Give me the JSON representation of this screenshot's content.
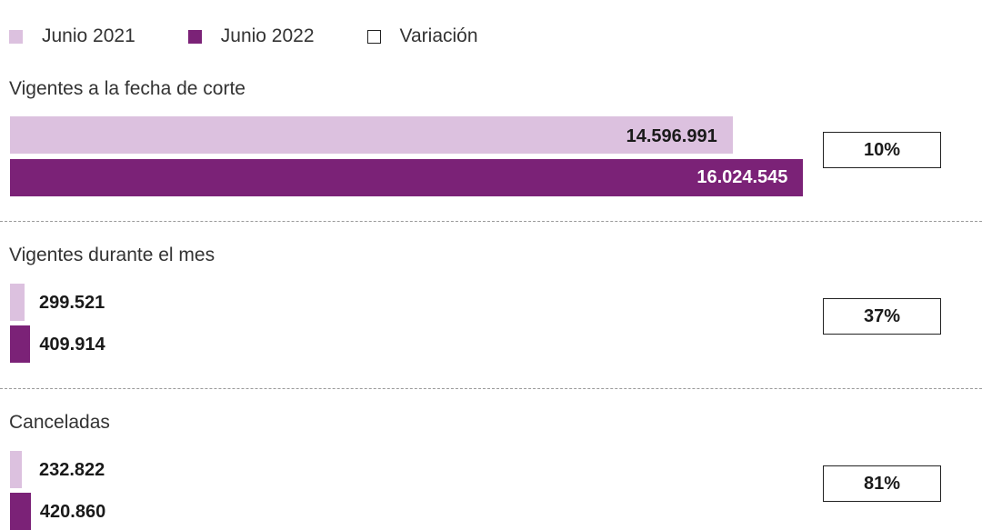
{
  "colors": {
    "junio_2021": "#dcc1df",
    "junio_2022": "#7b2277"
  },
  "legend": {
    "items": [
      {
        "label": "Junio 2021",
        "swatch": "filled-light"
      },
      {
        "label": "Junio 2022",
        "swatch": "filled-dark"
      },
      {
        "label": "Variación",
        "swatch": "outline"
      }
    ]
  },
  "chart_data": {
    "type": "bar",
    "orientation": "horizontal",
    "categories": [
      "Vigentes  a la fecha de corte",
      "Vigentes durante el mes",
      "Canceladas"
    ],
    "series": [
      {
        "name": "Junio 2021",
        "values": [
          14596991,
          299521,
          232822
        ]
      },
      {
        "name": "Junio 2022",
        "values": [
          16024545,
          409914,
          420860
        ]
      }
    ],
    "value_labels": {
      "Junio 2021": [
        "14.596.991",
        "299.521",
        "232.822"
      ],
      "Junio 2022": [
        "16.024.545",
        "409.914",
        "420.860"
      ]
    },
    "variation": [
      "10%",
      "37%",
      "81%"
    ],
    "xlim": [
      0,
      18000000
    ],
    "grid": false,
    "legend_position": "top-left"
  }
}
